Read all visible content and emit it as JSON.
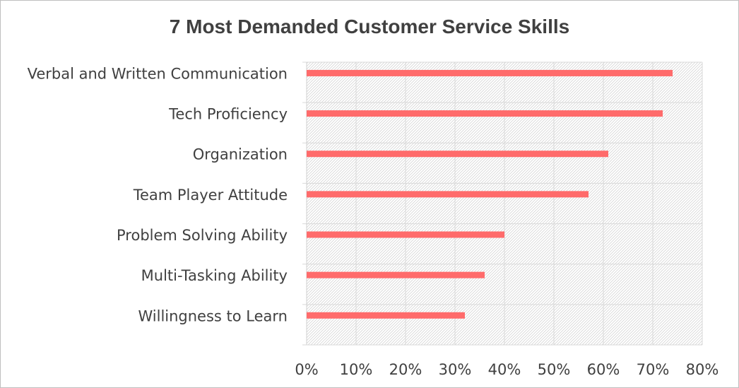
{
  "chart_data": {
    "type": "bar",
    "orientation": "horizontal",
    "title": "7 Most Demanded Customer Service Skills",
    "categories": [
      "Verbal and Written Communication",
      "Tech Proficiency",
      "Organization",
      "Team Player Attitude",
      "Problem Solving Ability",
      "Multi-Tasking Ability",
      "Willingness to Learn"
    ],
    "values": [
      74,
      72,
      61,
      57,
      40,
      36,
      32
    ],
    "xlim": [
      0,
      80
    ],
    "x_ticks": [
      "0%",
      "10%",
      "20%",
      "30%",
      "40%",
      "50%",
      "60%",
      "70%",
      "80%"
    ],
    "grid": true,
    "bar_color": "#ff6b6b",
    "plot_background": "hatched"
  }
}
